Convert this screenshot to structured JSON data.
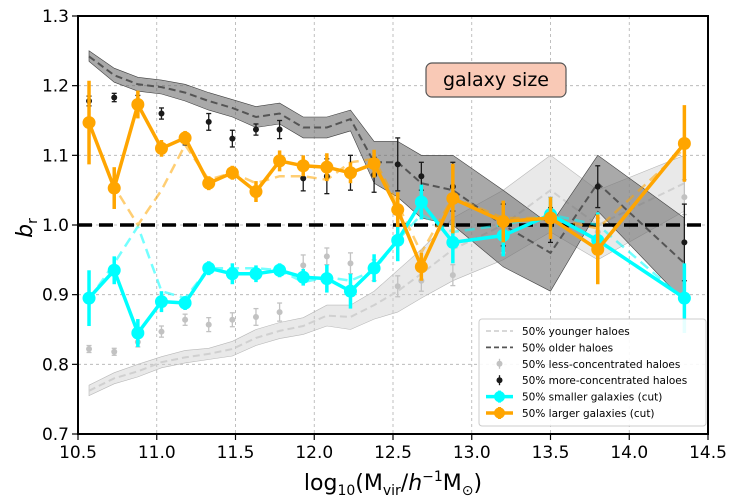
{
  "chart_data": {
    "type": "line",
    "xlabel_parts": {
      "pre": "log",
      "sub1": "10",
      "open": "(M",
      "sub2": "vir",
      "mid": "/",
      "h": "h",
      "sup": "−1",
      "m": "M",
      "sub3": "⊙",
      "close": ")"
    },
    "ylabel_parts": {
      "main": "b",
      "sub": "r"
    },
    "xlim": [
      10.5,
      14.5
    ],
    "ylim": [
      0.7,
      1.3
    ],
    "x_ticks": [
      "10.5",
      "11.0",
      "11.5",
      "12.0",
      "12.5",
      "13.0",
      "13.5",
      "14.0",
      "14.5"
    ],
    "y_ticks": [
      "0.7",
      "0.8",
      "0.9",
      "1.0",
      "1.1",
      "1.2",
      "1.3"
    ],
    "grid": true,
    "reference_line_y": 1.0,
    "annotation": "galaxy size",
    "legend_position": "lower-right",
    "colors": {
      "young": "#d3d3d3",
      "old": "#555555",
      "less": "#c2c2c2",
      "more": "#1a1a1a",
      "small": "#00ffff",
      "large": "#ffa500"
    },
    "series": [
      {
        "name": "50% younger haloes",
        "style": "dashed-band",
        "color": "#d3d3d3",
        "x": [
          10.57,
          10.73,
          10.88,
          11.03,
          11.18,
          11.33,
          11.48,
          11.63,
          11.78,
          11.93,
          12.08,
          12.23,
          12.38,
          12.53,
          12.68,
          12.88,
          13.2,
          13.5,
          13.8,
          14.35
        ],
        "y": [
          0.762,
          0.78,
          0.79,
          0.803,
          0.81,
          0.815,
          0.822,
          0.838,
          0.848,
          0.855,
          0.87,
          0.868,
          0.885,
          0.905,
          0.93,
          0.965,
          1.0,
          1.05,
          1.0,
          1.06
        ],
        "lo": [
          0.755,
          0.772,
          0.782,
          0.795,
          0.802,
          0.807,
          0.812,
          0.827,
          0.837,
          0.843,
          0.855,
          0.85,
          0.865,
          0.875,
          0.895,
          0.92,
          0.95,
          0.99,
          0.95,
          1.02
        ],
        "hi": [
          0.77,
          0.788,
          0.8,
          0.811,
          0.82,
          0.823,
          0.833,
          0.85,
          0.86,
          0.867,
          0.885,
          0.885,
          0.905,
          0.935,
          0.965,
          1.01,
          1.05,
          1.1,
          1.05,
          1.1
        ]
      },
      {
        "name": "50% older haloes",
        "style": "dashed-band",
        "color": "#555555",
        "x": [
          10.57,
          10.73,
          10.88,
          11.03,
          11.18,
          11.33,
          11.48,
          11.63,
          11.78,
          11.93,
          12.08,
          12.23,
          12.38,
          12.53,
          12.68,
          12.88,
          13.2,
          13.5,
          13.8,
          14.35
        ],
        "y": [
          1.242,
          1.215,
          1.202,
          1.198,
          1.19,
          1.178,
          1.168,
          1.155,
          1.16,
          1.14,
          1.14,
          1.152,
          1.09,
          1.09,
          1.06,
          1.05,
          1.0,
          0.96,
          1.06,
          0.945
        ],
        "lo": [
          1.235,
          1.205,
          1.192,
          1.188,
          1.178,
          1.165,
          1.155,
          1.14,
          1.145,
          1.125,
          1.125,
          1.135,
          1.06,
          1.04,
          1.01,
          1.0,
          0.94,
          0.905,
          1.02,
          0.89
        ],
        "hi": [
          1.25,
          1.225,
          1.212,
          1.208,
          1.202,
          1.19,
          1.18,
          1.17,
          1.175,
          1.155,
          1.155,
          1.165,
          1.12,
          1.12,
          1.1,
          1.1,
          1.05,
          1.0,
          1.1,
          1.01
        ]
      },
      {
        "name": "50% less-concentrated haloes",
        "style": "errorbar",
        "color": "#c2c2c2",
        "x": [
          10.57,
          10.73,
          10.88,
          11.03,
          11.18,
          11.33,
          11.48,
          11.63,
          11.78,
          11.93,
          12.08,
          12.23,
          12.38,
          12.53,
          12.68,
          12.88,
          13.2,
          13.5,
          13.8,
          14.35
        ],
        "y": [
          0.822,
          0.818,
          0.832,
          0.847,
          0.864,
          0.857,
          0.864,
          0.868,
          0.875,
          0.942,
          0.955,
          0.945,
          0.935,
          0.912,
          0.92,
          0.928,
          0.98,
          1.02,
          0.99,
          1.04
        ],
        "err": [
          0.005,
          0.005,
          0.007,
          0.008,
          0.008,
          0.01,
          0.01,
          0.012,
          0.013,
          0.015,
          0.012,
          0.015,
          0.015,
          0.015,
          0.015,
          0.015,
          0.02,
          0.02,
          0.02,
          0.025
        ]
      },
      {
        "name": "50% more-concentrated haloes",
        "style": "errorbar",
        "color": "#1a1a1a",
        "x": [
          10.57,
          10.73,
          10.88,
          11.03,
          11.18,
          11.33,
          11.48,
          11.63,
          11.78,
          11.93,
          12.08,
          12.23,
          12.38,
          12.53,
          12.68,
          12.88,
          13.2,
          13.5,
          13.8,
          14.35
        ],
        "y": [
          1.178,
          1.183,
          1.178,
          1.16,
          1.123,
          1.148,
          1.124,
          1.137,
          1.137,
          1.067,
          1.07,
          1.075,
          1.072,
          1.087,
          1.07,
          1.055,
          1.0,
          1.0,
          1.055,
          0.975
        ],
        "err": [
          0.007,
          0.006,
          0.008,
          0.008,
          0.008,
          0.012,
          0.012,
          0.008,
          0.013,
          0.018,
          0.025,
          0.025,
          0.025,
          0.038,
          0.02,
          0.035,
          0.03,
          0.025,
          0.03,
          0.055
        ]
      },
      {
        "name": "50% smaller galaxies (cut)",
        "style": "solid-marker",
        "color": "#00ffff",
        "x": [
          10.57,
          10.73,
          10.88,
          11.03,
          11.18,
          11.33,
          11.48,
          11.63,
          11.78,
          11.93,
          12.08,
          12.23,
          12.38,
          12.53,
          12.68,
          12.88,
          13.2,
          13.5,
          13.8,
          14.35
        ],
        "y": [
          0.895,
          0.935,
          0.845,
          0.89,
          0.888,
          0.938,
          0.93,
          0.93,
          0.935,
          0.925,
          0.923,
          0.905,
          0.938,
          0.978,
          1.033,
          0.975,
          0.985,
          1.015,
          0.978,
          0.895
        ],
        "err": [
          0.04,
          0.02,
          0.02,
          0.015,
          0.01,
          0.01,
          0.015,
          0.012,
          0.01,
          0.012,
          0.02,
          0.025,
          0.02,
          0.03,
          0.025,
          0.03,
          0.03,
          0.025,
          0.04,
          0.05
        ]
      },
      {
        "name": "50% larger galaxies (cut)",
        "style": "solid-marker",
        "color": "#ffa500",
        "x": [
          10.57,
          10.73,
          10.88,
          11.03,
          11.18,
          11.33,
          11.48,
          11.63,
          11.78,
          11.93,
          12.08,
          12.23,
          12.38,
          12.53,
          12.68,
          12.88,
          13.2,
          13.5,
          13.8,
          14.35
        ],
        "y": [
          1.147,
          1.053,
          1.173,
          1.11,
          1.125,
          1.06,
          1.075,
          1.048,
          1.092,
          1.085,
          1.083,
          1.075,
          1.088,
          1.022,
          0.94,
          1.038,
          1.005,
          1.01,
          0.965,
          1.117
        ],
        "err": [
          0.06,
          0.03,
          0.02,
          0.012,
          0.01,
          0.01,
          0.01,
          0.015,
          0.015,
          0.015,
          0.02,
          0.015,
          0.02,
          0.025,
          0.02,
          0.05,
          0.03,
          0.03,
          0.05,
          0.055
        ]
      },
      {
        "name": "",
        "style": "dashed-faint",
        "color": "#00ffff",
        "x": [
          10.57,
          10.73,
          10.88,
          11.03,
          11.18,
          11.33,
          11.48,
          11.63,
          11.78,
          11.93,
          12.08,
          12.23,
          12.38,
          12.53,
          12.68,
          12.88,
          13.2,
          13.5,
          13.8,
          14.35
        ],
        "y": [
          0.893,
          0.945,
          0.998,
          0.905,
          0.895,
          0.938,
          0.938,
          0.938,
          0.935,
          0.918,
          0.925,
          0.92,
          0.935,
          0.978,
          1.015,
          0.99,
          1.0,
          1.015,
          1.0,
          0.893
        ]
      },
      {
        "name": "",
        "style": "dashed-faint",
        "color": "#ffa500",
        "x": [
          10.57,
          10.73,
          10.88,
          11.03,
          11.18,
          11.33,
          11.48,
          11.63,
          11.78,
          11.93,
          12.08,
          12.23,
          12.38,
          12.53,
          12.68,
          12.88,
          13.2,
          13.5,
          13.8,
          14.35
        ],
        "y": [
          1.148,
          1.055,
          1.0,
          1.05,
          1.115,
          1.065,
          1.075,
          1.06,
          1.07,
          1.07,
          1.065,
          1.09,
          1.095,
          1.03,
          0.96,
          1.04,
          1.01,
          1.01,
          0.995,
          1.11
        ]
      }
    ]
  }
}
